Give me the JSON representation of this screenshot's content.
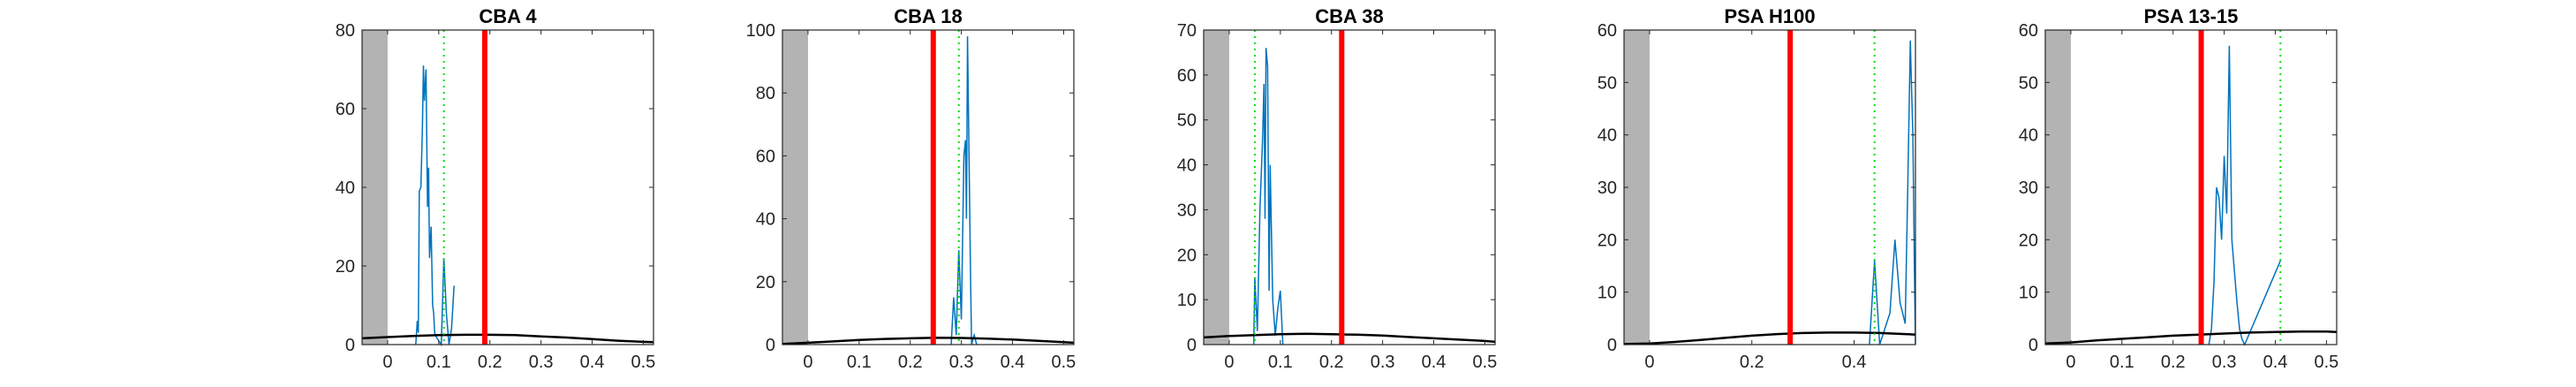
{
  "chart_data": [
    {
      "type": "line",
      "title": "CBA 4",
      "xlim": [
        -0.05,
        0.52
      ],
      "ylim": [
        0,
        80
      ],
      "xticks": [
        0,
        0.1,
        0.2,
        0.3,
        0.4,
        0.5
      ],
      "xtick_labels": [
        "0",
        "0.1",
        "0.2",
        "0.3",
        "0.4",
        "0.5"
      ],
      "yticks": [
        0,
        20,
        40,
        60,
        80
      ],
      "ytick_labels": [
        "0",
        "20",
        "40",
        "60",
        "80"
      ],
      "shaded_region": [
        -0.05,
        0
      ],
      "red_line_x": 0.19,
      "green_dotted_x": 0.11,
      "series": [
        {
          "color": "#0072BD",
          "x": [
            0.055,
            0.058,
            0.06,
            0.062,
            0.065,
            0.068,
            0.07,
            0.072,
            0.075,
            0.078,
            0.08,
            0.082,
            0.085,
            0.088,
            0.09,
            0.092,
            0.095,
            0.1,
            0.105,
            0.11,
            0.115,
            0.12,
            0.125,
            0.13
          ],
          "y": [
            0,
            6,
            3,
            39,
            40,
            55,
            71,
            62,
            70,
            35,
            45,
            22,
            30,
            10,
            8,
            3,
            2,
            1,
            0,
            22,
            8,
            0,
            4,
            15
          ]
        },
        {
          "color": "#000000",
          "x": [
            -0.05,
            0.0,
            0.05,
            0.1,
            0.15,
            0.2,
            0.25,
            0.3,
            0.35,
            0.4,
            0.45,
            0.5,
            0.52
          ],
          "y": [
            1.6,
            1.9,
            2.2,
            2.4,
            2.5,
            2.5,
            2.4,
            2.1,
            1.8,
            1.4,
            1.0,
            0.7,
            0.6
          ]
        }
      ]
    },
    {
      "type": "line",
      "title": "CBA 18",
      "xlim": [
        -0.05,
        0.52
      ],
      "ylim": [
        0,
        100
      ],
      "xticks": [
        0,
        0.1,
        0.2,
        0.3,
        0.4,
        0.5
      ],
      "xtick_labels": [
        "0",
        "0.1",
        "0.2",
        "0.3",
        "0.4",
        "0.5"
      ],
      "yticks": [
        0,
        20,
        40,
        60,
        80,
        100
      ],
      "ytick_labels": [
        "0",
        "20",
        "40",
        "60",
        "80",
        "100"
      ],
      "shaded_region": [
        -0.05,
        0
      ],
      "red_line_x": 0.245,
      "green_dotted_x": 0.295,
      "series": [
        {
          "color": "#0072BD",
          "x": [
            0.28,
            0.285,
            0.29,
            0.295,
            0.3,
            0.305,
            0.308,
            0.31,
            0.312,
            0.315,
            0.318,
            0.32,
            0.325,
            0.33
          ],
          "y": [
            0,
            15,
            3,
            30,
            8,
            60,
            65,
            40,
            98,
            60,
            20,
            0,
            3,
            0
          ]
        },
        {
          "color": "#000000",
          "x": [
            -0.05,
            0.0,
            0.05,
            0.1,
            0.15,
            0.2,
            0.25,
            0.3,
            0.35,
            0.4,
            0.45,
            0.5,
            0.52
          ],
          "y": [
            0.2,
            0.6,
            1.0,
            1.5,
            1.8,
            2.0,
            2.2,
            2.1,
            1.9,
            1.6,
            1.2,
            0.8,
            0.6
          ]
        }
      ]
    },
    {
      "type": "line",
      "title": "CBA 38",
      "xlim": [
        -0.05,
        0.52
      ],
      "ylim": [
        0,
        70
      ],
      "xticks": [
        0,
        0.1,
        0.2,
        0.3,
        0.4,
        0.5
      ],
      "xtick_labels": [
        "0",
        "0.1",
        "0.2",
        "0.3",
        "0.4",
        "0.5"
      ],
      "yticks": [
        0,
        10,
        20,
        30,
        40,
        50,
        60,
        70
      ],
      "ytick_labels": [
        "0",
        "10",
        "20",
        "30",
        "40",
        "50",
        "60",
        "70"
      ],
      "shaded_region": [
        -0.05,
        0
      ],
      "red_line_x": 0.22,
      "green_dotted_x": 0.05,
      "series": [
        {
          "color": "#0072BD",
          "x": [
            0.048,
            0.05,
            0.055,
            0.06,
            0.065,
            0.068,
            0.07,
            0.072,
            0.075,
            0.078,
            0.08,
            0.085,
            0.09,
            0.095,
            0.1,
            0.105
          ],
          "y": [
            0,
            15,
            3,
            30,
            45,
            58,
            28,
            66,
            62,
            12,
            40,
            10,
            2,
            8,
            12,
            0
          ]
        },
        {
          "color": "#000000",
          "x": [
            -0.05,
            0.0,
            0.05,
            0.1,
            0.15,
            0.2,
            0.25,
            0.3,
            0.35,
            0.4,
            0.45,
            0.5,
            0.52
          ],
          "y": [
            1.6,
            1.9,
            2.1,
            2.3,
            2.4,
            2.3,
            2.2,
            2.0,
            1.7,
            1.4,
            1.1,
            0.8,
            0.6
          ]
        }
      ]
    },
    {
      "type": "line",
      "title": "PSA H100",
      "xlim": [
        -0.05,
        0.52
      ],
      "ylim": [
        0,
        60
      ],
      "xticks": [
        0,
        0.2,
        0.4
      ],
      "xtick_labels": [
        "0",
        "0.2",
        "0.4"
      ],
      "yticks": [
        0,
        10,
        20,
        30,
        40,
        50,
        60
      ],
      "ytick_labels": [
        "0",
        "10",
        "20",
        "30",
        "40",
        "50",
        "60"
      ],
      "shaded_region": [
        -0.05,
        0
      ],
      "red_line_x": 0.275,
      "green_dotted_x": 0.44,
      "series": [
        {
          "color": "#0072BD",
          "x": [
            0.43,
            0.44,
            0.45,
            0.47,
            0.48,
            0.49,
            0.5,
            0.505,
            0.51,
            0.512,
            0.515,
            0.518,
            0.52
          ],
          "y": [
            0,
            16,
            0,
            6,
            20,
            8,
            4,
            30,
            58,
            50,
            40,
            15,
            0
          ]
        },
        {
          "color": "#000000",
          "x": [
            -0.05,
            0.0,
            0.05,
            0.1,
            0.15,
            0.2,
            0.25,
            0.3,
            0.35,
            0.4,
            0.45,
            0.5,
            0.52
          ],
          "y": [
            0.1,
            0.2,
            0.5,
            0.9,
            1.3,
            1.7,
            2.0,
            2.2,
            2.3,
            2.3,
            2.2,
            2.0,
            1.9
          ]
        }
      ]
    },
    {
      "type": "line",
      "title": "PSA 13-15",
      "xlim": [
        -0.05,
        0.52
      ],
      "ylim": [
        0,
        60
      ],
      "xticks": [
        0,
        0.1,
        0.2,
        0.3,
        0.4,
        0.5
      ],
      "xtick_labels": [
        "0",
        "0.1",
        "0.2",
        "0.3",
        "0.4",
        "0.5"
      ],
      "yticks": [
        0,
        10,
        20,
        30,
        40,
        50,
        60
      ],
      "ytick_labels": [
        "0",
        "10",
        "20",
        "30",
        "40",
        "50",
        "60"
      ],
      "shaded_region": [
        -0.05,
        0
      ],
      "red_line_x": 0.255,
      "green_dotted_x": 0.41,
      "series": [
        {
          "color": "#0072BD",
          "x": [
            0.27,
            0.275,
            0.28,
            0.285,
            0.29,
            0.295,
            0.3,
            0.305,
            0.31,
            0.315,
            0.32,
            0.325,
            0.33,
            0.335,
            0.34,
            0.41
          ],
          "y": [
            0,
            3,
            12,
            30,
            28,
            20,
            36,
            25,
            57,
            20,
            14,
            8,
            3,
            1,
            0,
            16
          ]
        },
        {
          "color": "#000000",
          "x": [
            -0.05,
            0.0,
            0.05,
            0.1,
            0.15,
            0.2,
            0.25,
            0.3,
            0.35,
            0.4,
            0.45,
            0.5,
            0.52
          ],
          "y": [
            0.2,
            0.4,
            0.8,
            1.1,
            1.4,
            1.7,
            1.9,
            2.1,
            2.3,
            2.4,
            2.5,
            2.5,
            2.4
          ]
        }
      ]
    }
  ]
}
